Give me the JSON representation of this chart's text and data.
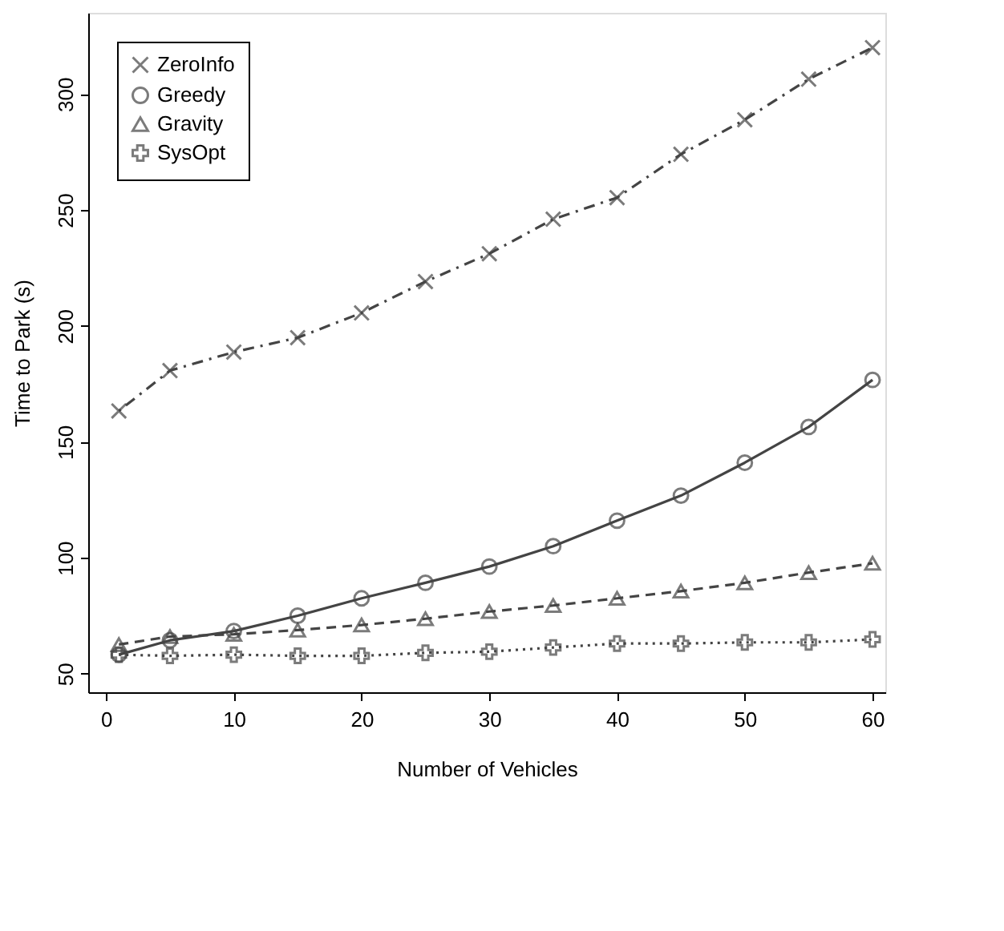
{
  "chart_data": {
    "type": "line",
    "xlabel": "Number of Vehicles",
    "ylabel": "Time to Park (s)",
    "x": [
      1,
      5,
      10,
      15,
      20,
      25,
      30,
      35,
      40,
      45,
      50,
      55,
      60
    ],
    "xlim": [
      -1.4,
      61
    ],
    "ylim": [
      42,
      335
    ],
    "xticks": [
      0,
      10,
      20,
      30,
      40,
      50,
      60
    ],
    "yticks": [
      50,
      100,
      150,
      200,
      250,
      300
    ],
    "grid": false,
    "legend": "top left",
    "series": [
      {
        "name": "ZeroInfo",
        "color": "#444444",
        "marker": "x",
        "line_style": "dashdot",
        "values": [
          163.3,
          180.7,
          188.7,
          194.9,
          205.6,
          219.1,
          231.1,
          246,
          255.3,
          274,
          288.9,
          306.4,
          320
        ]
      },
      {
        "name": "Greedy",
        "color": "#444444",
        "marker": "circle",
        "line_style": "solid",
        "values": [
          58.2,
          64.4,
          68.4,
          75,
          82.5,
          89.2,
          96.2,
          105,
          116,
          126.8,
          141,
          156.4,
          176.7
        ]
      },
      {
        "name": "Gravity",
        "color": "#444444",
        "marker": "triangle",
        "line_style": "dashed",
        "values": [
          62.6,
          66,
          67,
          68.8,
          71,
          73.7,
          76.8,
          79.4,
          82.5,
          85.6,
          89.2,
          93.6,
          97.6
        ]
      },
      {
        "name": "SysOpt",
        "color": "#444444",
        "marker": "cross",
        "line_style": "dotted",
        "values": [
          58.2,
          57.7,
          58.2,
          57.7,
          57.7,
          59,
          59.5,
          61.3,
          63,
          63,
          63.5,
          63.5,
          64.8
        ]
      }
    ]
  }
}
